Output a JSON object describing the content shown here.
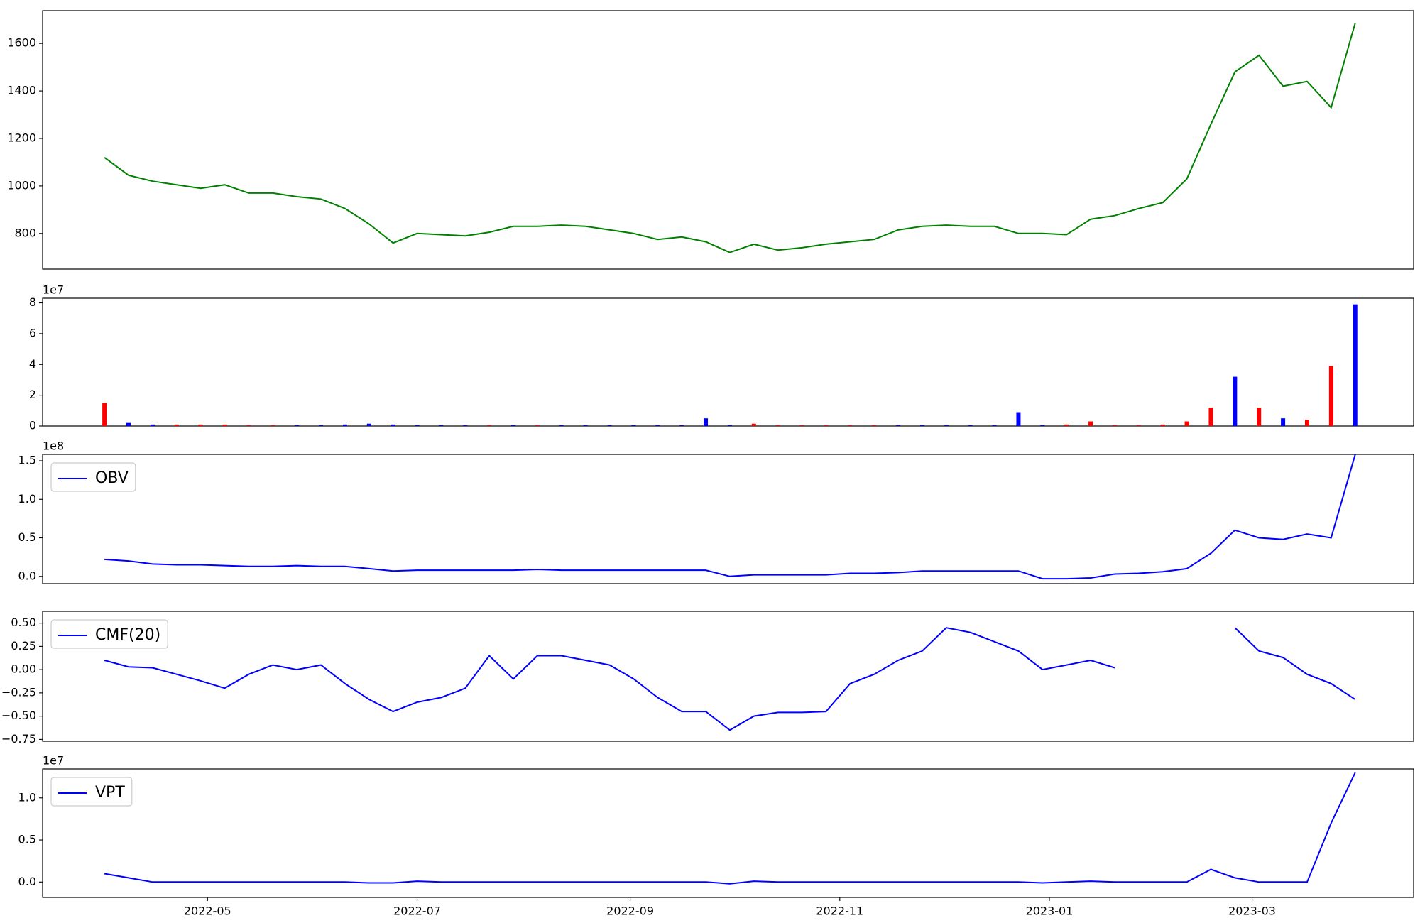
{
  "chart_data": [
    {
      "type": "line",
      "color": "#008000",
      "x": [
        0,
        7,
        14,
        21,
        28,
        35,
        42,
        49,
        56,
        63,
        70,
        77,
        84,
        91,
        98,
        105,
        112,
        119,
        126,
        133,
        140,
        147,
        154,
        161,
        168,
        175,
        182,
        189,
        196,
        203,
        210,
        217,
        224,
        231,
        238,
        245,
        252,
        259,
        266,
        273,
        280,
        287,
        294,
        301,
        308,
        315,
        322,
        329,
        336,
        343,
        350,
        357,
        364
      ],
      "values": [
        1120,
        1045,
        1020,
        1005,
        990,
        1005,
        970,
        970,
        955,
        945,
        905,
        840,
        760,
        800,
        795,
        790,
        805,
        830,
        830,
        835,
        830,
        815,
        800,
        775,
        785,
        765,
        720,
        755,
        730,
        740,
        755,
        765,
        775,
        815,
        830,
        835,
        830,
        830,
        800,
        800,
        795,
        860,
        875,
        905,
        930,
        1030,
        1260,
        1480,
        1550,
        1420,
        1440,
        1330,
        1685
      ],
      "xlim": [
        -18,
        381
      ],
      "ylim": [
        650,
        1738
      ],
      "yticks": [
        800,
        1000,
        1200,
        1400,
        1600
      ]
    },
    {
      "type": "bar",
      "y_offset_label": "1e7",
      "x": [
        0,
        7,
        14,
        21,
        28,
        35,
        42,
        49,
        56,
        63,
        70,
        77,
        84,
        91,
        98,
        105,
        112,
        119,
        126,
        133,
        140,
        147,
        154,
        161,
        168,
        175,
        182,
        189,
        196,
        203,
        210,
        217,
        224,
        231,
        238,
        245,
        252,
        259,
        266,
        273,
        280,
        287,
        294,
        301,
        308,
        315,
        322,
        329,
        336,
        343,
        350,
        357,
        364
      ],
      "values": [
        1.5,
        0.2,
        0.1,
        0.1,
        0.1,
        0.1,
        0.05,
        0.05,
        0.05,
        0.05,
        0.1,
        0.15,
        0.1,
        0.05,
        0.05,
        0.05,
        0.05,
        0.05,
        0.05,
        0.05,
        0.05,
        0.05,
        0.05,
        0.05,
        0.05,
        0.5,
        0.05,
        0.15,
        0.05,
        0.05,
        0.05,
        0.05,
        0.05,
        0.05,
        0.05,
        0.05,
        0.05,
        0.05,
        0.9,
        0.05,
        0.1,
        0.3,
        0.05,
        0.05,
        0.1,
        0.3,
        1.2,
        3.2,
        1.2,
        0.5,
        0.4,
        3.9,
        7.9
      ],
      "colors": [
        "#ff0000",
        "#0000ff",
        "#0000ff",
        "#ff0000",
        "#ff0000",
        "#ff0000",
        "#ff0000",
        "#ff0000",
        "#0000ff",
        "#0000ff",
        "#0000ff",
        "#0000ff",
        "#0000ff",
        "#0000ff",
        "#0000ff",
        "#0000ff",
        "#ff0000",
        "#0000ff",
        "#ff0000",
        "#0000ff",
        "#0000ff",
        "#0000ff",
        "#0000ff",
        "#0000ff",
        "#0000ff",
        "#0000ff",
        "#0000ff",
        "#ff0000",
        "#ff0000",
        "#ff0000",
        "#ff0000",
        "#ff0000",
        "#ff0000",
        "#0000ff",
        "#0000ff",
        "#0000ff",
        "#0000ff",
        "#0000ff",
        "#0000ff",
        "#0000ff",
        "#ff0000",
        "#ff0000",
        "#ff0000",
        "#ff0000",
        "#ff0000",
        "#ff0000",
        "#ff0000",
        "#0000ff",
        "#ff0000",
        "#0000ff",
        "#ff0000",
        "#ff0000",
        "#0000ff"
      ],
      "xlim": [
        -18,
        381
      ],
      "ylim": [
        0,
        8.3
      ],
      "yticks": [
        0,
        2,
        4,
        6,
        8
      ]
    },
    {
      "type": "line",
      "y_offset_label": "1e8",
      "legend": "upper left",
      "x": [
        0,
        7,
        14,
        21,
        28,
        35,
        42,
        49,
        56,
        63,
        70,
        77,
        84,
        91,
        98,
        105,
        112,
        119,
        126,
        133,
        140,
        147,
        154,
        161,
        168,
        175,
        182,
        189,
        196,
        203,
        210,
        217,
        224,
        231,
        238,
        245,
        252,
        259,
        266,
        273,
        280,
        287,
        294,
        301,
        308,
        315,
        322,
        329,
        336,
        343,
        350,
        357,
        364
      ],
      "series": [
        {
          "name": "OBV",
          "color": "#0000ff",
          "values": [
            0.22,
            0.2,
            0.16,
            0.15,
            0.15,
            0.14,
            0.13,
            0.13,
            0.14,
            0.13,
            0.13,
            0.1,
            0.07,
            0.08,
            0.08,
            0.08,
            0.08,
            0.08,
            0.09,
            0.08,
            0.08,
            0.08,
            0.08,
            0.08,
            0.08,
            0.08,
            0.0,
            0.02,
            0.02,
            0.02,
            0.02,
            0.04,
            0.04,
            0.05,
            0.07,
            0.07,
            0.07,
            0.07,
            0.07,
            -0.03,
            -0.03,
            -0.02,
            0.03,
            0.04,
            0.06,
            0.1,
            0.3,
            0.6,
            0.5,
            0.48,
            0.55,
            0.5,
            1.58
          ]
        }
      ],
      "xlim": [
        -18,
        381
      ],
      "ylim": [
        -0.094,
        1.583
      ],
      "yticks": [
        {
          "value": 0,
          "label": "0.0"
        },
        {
          "value": 0.5,
          "label": "0.5"
        },
        {
          "value": 1,
          "label": "1.0"
        },
        {
          "value": 1.5,
          "label": "1.5"
        }
      ]
    },
    {
      "type": "line",
      "legend": "upper left",
      "x": [
        0,
        7,
        14,
        21,
        28,
        35,
        42,
        49,
        56,
        63,
        70,
        77,
        84,
        91,
        98,
        105,
        112,
        119,
        126,
        133,
        140,
        147,
        154,
        161,
        168,
        175,
        182,
        189,
        196,
        203,
        210,
        217,
        224,
        231,
        238,
        245,
        252,
        259,
        266,
        273,
        280,
        287,
        294,
        301,
        308,
        315,
        322,
        329,
        336,
        343,
        350,
        357,
        364
      ],
      "series": [
        {
          "name": "CMF(20)",
          "color": "#0000ff",
          "values": [
            0.1,
            0.03,
            0.02,
            -0.05,
            -0.12,
            -0.2,
            -0.05,
            0.05,
            0.0,
            0.05,
            -0.15,
            -0.32,
            -0.45,
            -0.35,
            -0.3,
            -0.2,
            0.15,
            -0.1,
            0.15,
            0.15,
            0.1,
            0.05,
            -0.1,
            -0.3,
            -0.45,
            -0.45,
            -0.65,
            -0.5,
            -0.46,
            -0.46,
            -0.45,
            -0.15,
            -0.05,
            0.1,
            0.2,
            0.45,
            0.4,
            0.3,
            0.2,
            0.0,
            0.05,
            0.1,
            0.02,
            null,
            null,
            null,
            null,
            0.45,
            0.2,
            0.13,
            -0.05,
            -0.15,
            -0.32
          ]
        }
      ],
      "xlim": [
        -18,
        381
      ],
      "ylim": [
        -0.77,
        0.627
      ],
      "yticks": [
        {
          "value": -0.75,
          "label": "−0.75"
        },
        {
          "value": -0.5,
          "label": "−0.50"
        },
        {
          "value": -0.25,
          "label": "−0.25"
        },
        {
          "value": 0,
          "label": "0.00"
        },
        {
          "value": 0.25,
          "label": "0.25"
        },
        {
          "value": 0.5,
          "label": "0.50"
        }
      ]
    },
    {
      "type": "line",
      "y_offset_label": "1e7",
      "legend": "upper left",
      "x": [
        0,
        7,
        14,
        21,
        28,
        35,
        42,
        49,
        56,
        63,
        70,
        77,
        84,
        91,
        98,
        105,
        112,
        119,
        126,
        133,
        140,
        147,
        154,
        161,
        168,
        175,
        182,
        189,
        196,
        203,
        210,
        217,
        224,
        231,
        238,
        245,
        252,
        259,
        266,
        273,
        280,
        287,
        294,
        301,
        308,
        315,
        322,
        329,
        336,
        343,
        350,
        357,
        364
      ],
      "series": [
        {
          "name": "VPT",
          "color": "#0000ff",
          "values": [
            0.1,
            0.05,
            0.0,
            0.0,
            0.0,
            0.0,
            0.0,
            0.0,
            0.0,
            0.0,
            0.0,
            -0.01,
            -0.01,
            0.01,
            0.0,
            0.0,
            0.0,
            0.0,
            0.0,
            0.0,
            0.0,
            0.0,
            0.0,
            0.0,
            0.0,
            0.0,
            -0.02,
            0.01,
            0.0,
            0.0,
            0.0,
            0.0,
            0.0,
            0.0,
            0.0,
            0.0,
            0.0,
            0.0,
            0.0,
            -0.01,
            0.0,
            0.01,
            0.0,
            0.0,
            0.0,
            0.0,
            0.15,
            0.05,
            0.0,
            0.0,
            0.0,
            0.7,
            1.3
          ]
        }
      ],
      "xlim": [
        -18,
        381
      ],
      "ylim": [
        -0.183,
        1.344
      ],
      "yticks": [
        {
          "value": 0,
          "label": "0.0"
        },
        {
          "value": 0.5,
          "label": "0.5"
        },
        {
          "value": 1,
          "label": "1.0"
        }
      ],
      "xticks": [
        {
          "value": 30,
          "label": "2022-05"
        },
        {
          "value": 91,
          "label": "2022-07"
        },
        {
          "value": 153,
          "label": "2022-09"
        },
        {
          "value": 214,
          "label": "2022-11"
        },
        {
          "value": 275,
          "label": "2023-01"
        },
        {
          "value": 334,
          "label": "2023-03"
        }
      ]
    }
  ]
}
